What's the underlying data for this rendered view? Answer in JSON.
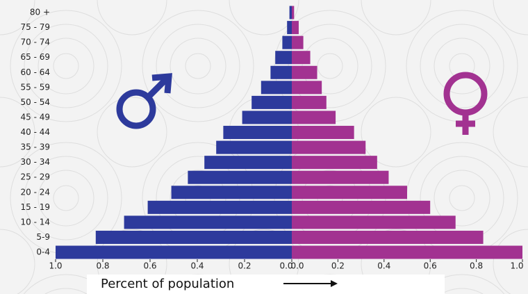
{
  "chart_data": {
    "type": "pyramid",
    "x_label": "Percent of population",
    "categories": [
      "0-4",
      "5-9",
      "10 - 14",
      "15 - 19",
      "20 - 24",
      "25 - 29",
      "30 - 34",
      "35 - 39",
      "40 - 44",
      "45 - 49",
      "50 - 54",
      "55 - 59",
      "60 - 64",
      "65 - 69",
      "70 - 74",
      "75 - 79",
      "80 +"
    ],
    "series": [
      {
        "color": "#2d3a9c",
        "values": [
          1.0,
          0.83,
          0.71,
          0.61,
          0.51,
          0.44,
          0.37,
          0.32,
          0.29,
          0.21,
          0.17,
          0.13,
          0.09,
          0.07,
          0.04,
          0.02,
          0.01
        ]
      },
      {
        "color": "#a23291",
        "values": [
          1.0,
          0.83,
          0.71,
          0.6,
          0.5,
          0.42,
          0.37,
          0.32,
          0.27,
          0.19,
          0.15,
          0.13,
          0.11,
          0.08,
          0.05,
          0.03,
          0.01
        ]
      }
    ],
    "xlim": [
      0,
      1.0
    ],
    "xticks": [
      {
        "value": 0,
        "label": "0.0"
      },
      0.2,
      0.4,
      0.6,
      0.8,
      {
        "value": 1.0,
        "label": "1.0"
      }
    ]
  }
}
